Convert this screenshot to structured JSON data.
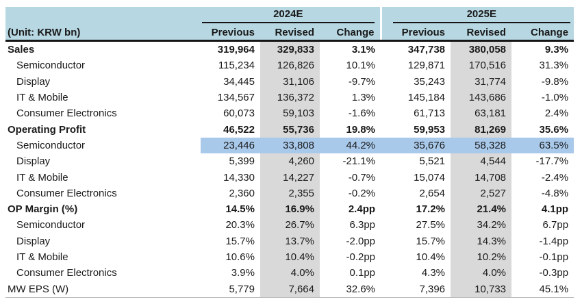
{
  "table": {
    "unit_label": "(Unit: KRW bn)",
    "year_groups": [
      "2024E",
      "2025E"
    ],
    "sub_headers": [
      "Previous",
      "Revised",
      "Change"
    ],
    "rows": [
      {
        "label": "Sales",
        "emphasis": "bold",
        "indent": false,
        "highlight": false,
        "values": [
          "319,964",
          "329,833",
          "3.1%",
          "347,738",
          "380,058",
          "9.3%"
        ]
      },
      {
        "label": "Semiconductor",
        "emphasis": "normal",
        "indent": true,
        "highlight": false,
        "values": [
          "115,234",
          "126,826",
          "10.1%",
          "129,871",
          "170,516",
          "31.3%"
        ]
      },
      {
        "label": "Display",
        "emphasis": "normal",
        "indent": true,
        "highlight": false,
        "values": [
          "34,445",
          "31,106",
          "-9.7%",
          "35,243",
          "31,774",
          "-9.8%"
        ]
      },
      {
        "label": "IT & Mobile",
        "emphasis": "normal",
        "indent": true,
        "highlight": false,
        "values": [
          "134,567",
          "136,372",
          "1.3%",
          "145,184",
          "143,686",
          "-1.0%"
        ]
      },
      {
        "label": "Consumer Electronics",
        "emphasis": "normal",
        "indent": true,
        "highlight": false,
        "values": [
          "60,073",
          "59,103",
          "-1.6%",
          "61,713",
          "63,181",
          "2.4%"
        ]
      },
      {
        "label": "Operating Profit",
        "emphasis": "bold",
        "indent": false,
        "highlight": false,
        "values": [
          "46,522",
          "55,736",
          "19.8%",
          "59,953",
          "81,269",
          "35.6%"
        ]
      },
      {
        "label": "Semiconductor",
        "emphasis": "normal",
        "indent": true,
        "highlight": true,
        "values": [
          "23,446",
          "33,808",
          "44.2%",
          "35,676",
          "58,328",
          "63.5%"
        ]
      },
      {
        "label": "Display",
        "emphasis": "normal",
        "indent": true,
        "highlight": false,
        "values": [
          "5,399",
          "4,260",
          "-21.1%",
          "5,521",
          "4,544",
          "-17.7%"
        ]
      },
      {
        "label": "IT & Mobile",
        "emphasis": "normal",
        "indent": true,
        "highlight": false,
        "values": [
          "14,330",
          "14,227",
          "-0.7%",
          "15,074",
          "14,708",
          "-2.4%"
        ]
      },
      {
        "label": "Consumer Electronics",
        "emphasis": "normal",
        "indent": true,
        "highlight": false,
        "values": [
          "2,360",
          "2,355",
          "-0.2%",
          "2,654",
          "2,527",
          "-4.8%"
        ]
      },
      {
        "label": "OP Margin (%)",
        "emphasis": "bold",
        "indent": false,
        "highlight": false,
        "values": [
          "14.5%",
          "16.9%",
          "2.4pp",
          "17.2%",
          "21.4%",
          "4.1pp"
        ]
      },
      {
        "label": "Semiconductor",
        "emphasis": "normal",
        "indent": true,
        "highlight": false,
        "values": [
          "20.3%",
          "26.7%",
          "6.3pp",
          "27.5%",
          "34.2%",
          "6.7pp"
        ]
      },
      {
        "label": "Display",
        "emphasis": "normal",
        "indent": true,
        "highlight": false,
        "values": [
          "15.7%",
          "13.7%",
          "-2.0pp",
          "15.7%",
          "14.3%",
          "-1.4pp"
        ]
      },
      {
        "label": "IT & Mobile",
        "emphasis": "normal",
        "indent": true,
        "highlight": false,
        "values": [
          "10.6%",
          "10.4%",
          "-0.2pp",
          "10.4%",
          "10.2%",
          "-0.1pp"
        ]
      },
      {
        "label": "Consumer Electronics",
        "emphasis": "normal",
        "indent": true,
        "highlight": false,
        "values": [
          "3.9%",
          "4.0%",
          "0.1pp",
          "4.3%",
          "4.0%",
          "-0.3pp"
        ]
      },
      {
        "label": "MW EPS (W)",
        "emphasis": "normal",
        "indent": false,
        "highlight": false,
        "values": [
          "5,779",
          "7,664",
          "32.6%",
          "7,396",
          "10,733",
          "45.1%"
        ]
      }
    ]
  },
  "colors": {
    "header_bg": "#b7d7e2",
    "revised_column_bg": "#d9d9d9",
    "highlight_row_bg": "#a9c9ea",
    "rule_dark": "#151515",
    "bottom_rule": "#bdbdbd"
  }
}
